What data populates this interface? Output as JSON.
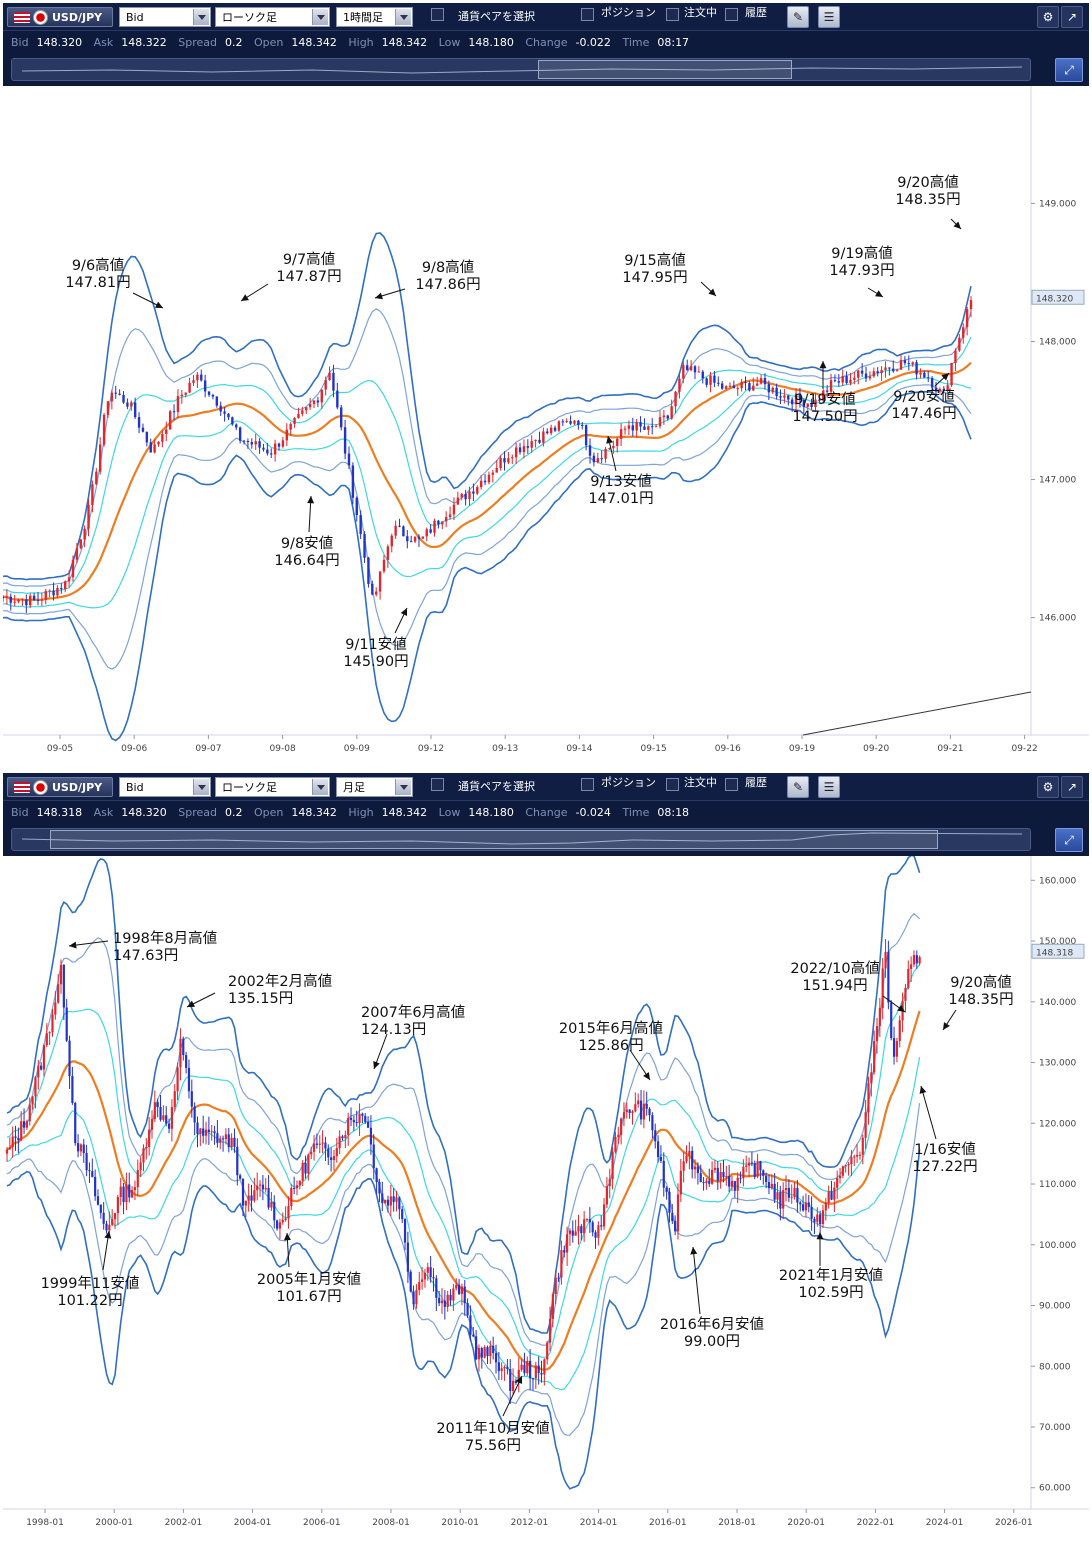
{
  "panels": [
    {
      "toolbar": {
        "symbol": "USD/JPY",
        "price_type": "Bid",
        "chart_type": "ローソク足",
        "timeframe": "1時間足",
        "pair_select_label": "通貨ペアを選択",
        "position_label": "ポジション",
        "order_label": "注文中",
        "history_label": "履歴"
      },
      "info": {
        "bid_label": "Bid",
        "bid": "148.320",
        "ask_label": "Ask",
        "ask": "148.322",
        "spread_label": "Spread",
        "spread": "0.2",
        "open_label": "Open",
        "open": "148.342",
        "high_label": "High",
        "high": "148.342",
        "low_label": "Low",
        "low": "148.180",
        "change_label": "Change",
        "change": "-0.022",
        "time_label": "Time",
        "time": "08:17"
      },
      "current_price": "148.320",
      "chart_data": {
        "type": "candlestick",
        "overlays": [
          "moving-average (orange)",
          "bollinger bands (blue / light blue / cyan)"
        ],
        "x_ticks": [
          "09-05",
          "09-06",
          "09-07",
          "09-08",
          "09-09",
          "09-12",
          "09-13",
          "09-14",
          "09-15",
          "09-16",
          "09-19",
          "09-20",
          "09-21",
          "09-22"
        ],
        "y_ticks": [
          "149.000",
          "148.000",
          "147.000",
          "146.000"
        ],
        "ylim": [
          145.15,
          149.85
        ],
        "close_path": [
          [
            0,
            146.15
          ],
          [
            0.4,
            146.12
          ],
          [
            0.8,
            146.25
          ],
          [
            1.1,
            146.8
          ],
          [
            1.35,
            147.65
          ],
          [
            1.6,
            147.55
          ],
          [
            1.9,
            147.2
          ],
          [
            2.25,
            147.6
          ],
          [
            2.45,
            147.75
          ],
          [
            2.75,
            147.55
          ],
          [
            3.0,
            147.3
          ],
          [
            3.4,
            147.2
          ],
          [
            3.7,
            147.4
          ],
          [
            4.0,
            147.6
          ],
          [
            4.15,
            147.8
          ],
          [
            4.45,
            146.9
          ],
          [
            4.7,
            146.1
          ],
          [
            4.95,
            146.65
          ],
          [
            5.3,
            146.55
          ],
          [
            5.6,
            146.75
          ],
          [
            6.0,
            146.95
          ],
          [
            6.45,
            147.2
          ],
          [
            6.95,
            147.35
          ],
          [
            7.3,
            147.45
          ],
          [
            7.5,
            147.15
          ],
          [
            7.75,
            147.25
          ],
          [
            7.95,
            147.4
          ],
          [
            8.2,
            147.35
          ],
          [
            8.45,
            147.45
          ],
          [
            8.65,
            147.8
          ],
          [
            8.85,
            147.75
          ],
          [
            9.2,
            147.65
          ],
          [
            9.6,
            147.7
          ],
          [
            9.95,
            147.6
          ],
          [
            10.3,
            147.55
          ],
          [
            10.55,
            147.7
          ],
          [
            10.85,
            147.75
          ],
          [
            11.15,
            147.8
          ],
          [
            11.45,
            147.85
          ],
          [
            11.75,
            147.75
          ],
          [
            11.95,
            147.6
          ],
          [
            12.1,
            147.95
          ],
          [
            12.3,
            148.3
          ]
        ],
        "annotations": [
          {
            "label": "9/6高値",
            "value": "147.81円"
          },
          {
            "label": "9/7高値",
            "value": "147.87円"
          },
          {
            "label": "9/8高値",
            "value": "147.86円"
          },
          {
            "label": "9/8安値",
            "value": "146.64円"
          },
          {
            "label": "9/11安値",
            "value": "145.90円"
          },
          {
            "label": "9/13安値",
            "value": "147.01円"
          },
          {
            "label": "9/15高値",
            "value": "147.95円"
          },
          {
            "label": "9/19高値",
            "value": "147.93円"
          },
          {
            "label": "9/19安値",
            "value": "147.50円"
          },
          {
            "label": "9/20高値",
            "value": "148.35円"
          },
          {
            "label": "9/20安値",
            "value": "147.46円"
          }
        ]
      }
    },
    {
      "toolbar": {
        "symbol": "USD/JPY",
        "price_type": "Bid",
        "chart_type": "ローソク足",
        "timeframe": "月足",
        "pair_select_label": "通貨ペアを選択",
        "position_label": "ポジション",
        "order_label": "注文中",
        "history_label": "履歴"
      },
      "info": {
        "bid_label": "Bid",
        "bid": "148.318",
        "ask_label": "Ask",
        "ask": "148.320",
        "spread_label": "Spread",
        "spread": "0.2",
        "open_label": "Open",
        "open": "148.342",
        "high_label": "High",
        "high": "148.342",
        "low_label": "Low",
        "low": "148.180",
        "change_label": "Change",
        "change": "-0.024",
        "time_label": "Time",
        "time": "08:18"
      },
      "current_price": "148.318",
      "chart_data": {
        "type": "candlestick",
        "overlays": [
          "moving-average (orange)",
          "bollinger bands (blue / light blue / cyan)"
        ],
        "x_ticks": [
          "1998-01",
          "2000-01",
          "2002-01",
          "2004-01",
          "2006-01",
          "2008-01",
          "2010-01",
          "2012-01",
          "2014-01",
          "2016-01",
          "2018-01",
          "2020-01",
          "2022-01",
          "2024-01",
          "2026-01"
        ],
        "y_ticks": [
          "160.000",
          "150.000",
          "140.000",
          "130.000",
          "120.000",
          "110.000",
          "100.000",
          "90.000",
          "80.000",
          "70.000",
          "60.000"
        ],
        "ylim": [
          56.5,
          164
        ],
        "close_path": [
          [
            1997.0,
            115
          ],
          [
            1997.5,
            120
          ],
          [
            1998.0,
            130
          ],
          [
            1998.6,
            145
          ],
          [
            1999.0,
            118
          ],
          [
            1999.5,
            110
          ],
          [
            1999.9,
            102
          ],
          [
            2000.3,
            108
          ],
          [
            2000.8,
            110
          ],
          [
            2001.3,
            123
          ],
          [
            2001.8,
            120
          ],
          [
            2002.1,
            133
          ],
          [
            2002.6,
            118
          ],
          [
            2003.0,
            118
          ],
          [
            2003.6,
            117
          ],
          [
            2004.0,
            106
          ],
          [
            2004.5,
            110
          ],
          [
            2005.0,
            103
          ],
          [
            2005.5,
            110
          ],
          [
            2006.0,
            116
          ],
          [
            2006.5,
            115
          ],
          [
            2007.0,
            120
          ],
          [
            2007.5,
            122
          ],
          [
            2008.0,
            107
          ],
          [
            2008.5,
            108
          ],
          [
            2008.9,
            91
          ],
          [
            2009.3,
            97
          ],
          [
            2009.8,
            90
          ],
          [
            2010.3,
            93
          ],
          [
            2010.8,
            82
          ],
          [
            2011.3,
            82
          ],
          [
            2011.8,
            77
          ],
          [
            2012.2,
            80
          ],
          [
            2012.7,
            78
          ],
          [
            2013.0,
            91
          ],
          [
            2013.4,
            101
          ],
          [
            2013.9,
            103
          ],
          [
            2014.4,
            102
          ],
          [
            2014.9,
            119
          ],
          [
            2015.4,
            123
          ],
          [
            2015.9,
            121
          ],
          [
            2016.4,
            107
          ],
          [
            2016.6,
            102
          ],
          [
            2016.9,
            116
          ],
          [
            2017.4,
            111
          ],
          [
            2017.9,
            112
          ],
          [
            2018.4,
            110
          ],
          [
            2018.9,
            113
          ],
          [
            2019.3,
            111
          ],
          [
            2019.7,
            107
          ],
          [
            2020.0,
            109
          ],
          [
            2020.5,
            106
          ],
          [
            2020.9,
            104
          ],
          [
            2021.3,
            110
          ],
          [
            2021.8,
            114
          ],
          [
            2022.1,
            116
          ],
          [
            2022.4,
            130
          ],
          [
            2022.8,
            148
          ],
          [
            2023.0,
            130
          ],
          [
            2023.5,
            145
          ],
          [
            2023.8,
            148.3
          ]
        ],
        "annotations": [
          {
            "label": "1998年8月高値",
            "value": "147.63円"
          },
          {
            "label": "2002年2月高値",
            "value": "135.15円"
          },
          {
            "label": "2007年6月高値",
            "value": "124.13円"
          },
          {
            "label": "1999年11安値",
            "value": "101.22円"
          },
          {
            "label": "2005年1月安値",
            "value": "101.67円"
          },
          {
            "label": "2011年10月安値",
            "value": "75.56円"
          },
          {
            "label": "2015年6月高値",
            "value": "125.86円"
          },
          {
            "label": "2016年6月安値",
            "value": "99.00円"
          },
          {
            "label": "2021年1月安値",
            "value": "102.59円"
          },
          {
            "label": "2022/10高値",
            "value": "151.94円"
          },
          {
            "label": "9/20高値",
            "value": "148.35円"
          },
          {
            "label": "1/16安値",
            "value": "127.22円"
          }
        ]
      }
    }
  ]
}
